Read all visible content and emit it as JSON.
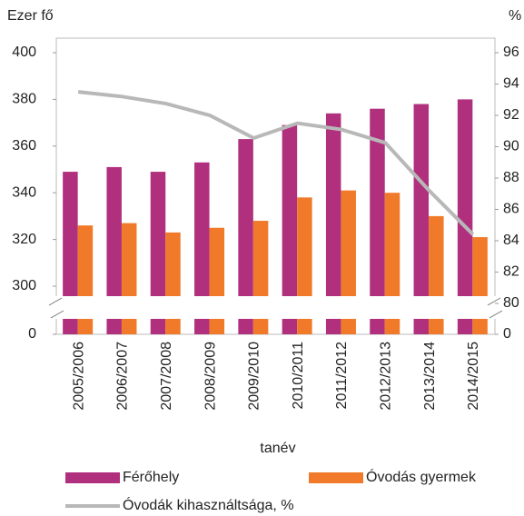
{
  "chart_data": {
    "type": "bar",
    "y_label": "Ezer fő",
    "y2_label": "%",
    "x_label": "tanév",
    "categories": [
      "2005/2006",
      "2006/2007",
      "2007/2008",
      "2008/2009",
      "2009/2010",
      "2010/2011",
      "2011/2012",
      "2012/2013",
      "2013/2014",
      "2014/2015"
    ],
    "series": [
      {
        "name": "Férőhely",
        "type": "bar",
        "color": "#b0307e",
        "values": [
          349,
          351,
          349,
          353,
          363,
          369,
          374,
          376,
          378,
          380
        ]
      },
      {
        "name": "Óvodás gyermek",
        "type": "bar",
        "color": "#f07a2a",
        "values": [
          326,
          327,
          323,
          325,
          328,
          338,
          341,
          340,
          330,
          321
        ]
      },
      {
        "name": "Óvodák kihasználtsága, %",
        "type": "line",
        "axis": "y2",
        "color": "#b8b8b8",
        "values": [
          93.5,
          93.2,
          92.75,
          92.0,
          90.55,
          91.5,
          91.1,
          90.25,
          87.2,
          84.4
        ]
      }
    ],
    "ylim": [
      0,
      400
    ],
    "yticks": [
      0,
      300,
      320,
      340,
      360,
      380,
      400
    ],
    "y2lim": [
      0,
      96
    ],
    "y2ticks": [
      0,
      80,
      82,
      84,
      86,
      88,
      90,
      92,
      94,
      96
    ],
    "axis_break": true
  }
}
